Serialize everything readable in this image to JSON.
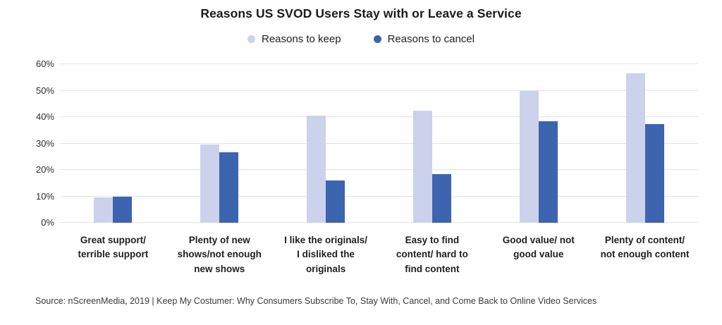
{
  "title": "Reasons US SVOD Users Stay with or Leave a Service",
  "source": "Source: nScreenMedia, 2019 |  Keep My Costumer: Why Consumers Subscribe To, Stay With, Cancel, and Come Back to Online Video Services",
  "chart_data": {
    "type": "bar",
    "title": "Reasons US SVOD Users Stay with or Leave a Service",
    "categories": [
      "Great support/\nterrible support",
      "Plenty of new\nshows/not enough\nnew shows",
      "I like the originals/\nI disliked the\noriginals",
      "Easy to find\ncontent/ hard to\nfind content",
      "Good value/ not\ngood value",
      "Plenty of content/\nnot enough content"
    ],
    "series": [
      {
        "name": "Reasons to keep",
        "color": "#ccd2ec",
        "values": [
          9.5,
          29.7,
          40.5,
          42.3,
          50.0,
          56.6
        ]
      },
      {
        "name": "Reasons to cancel",
        "color": "#3d64ae",
        "values": [
          10.0,
          26.6,
          16.0,
          18.3,
          38.3,
          37.3
        ]
      }
    ],
    "ylim": [
      0,
      60
    ],
    "yticks": [
      0,
      10,
      20,
      30,
      40,
      50,
      60
    ],
    "ytick_suffix": "%",
    "grid": "horizontal",
    "legend_position": "top"
  }
}
